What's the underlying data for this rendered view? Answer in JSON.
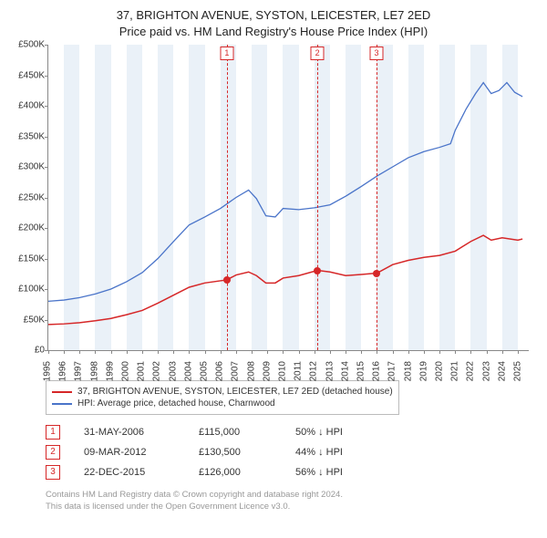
{
  "title_line1": "37, BRIGHTON AVENUE, SYSTON, LEICESTER, LE7 2ED",
  "title_line2": "Price paid vs. HM Land Registry's House Price Index (HPI)",
  "chart": {
    "type": "line",
    "background_color": "#ffffff",
    "band_color": "#eaf1f8",
    "axis_color": "#888888",
    "ylim": [
      0,
      500000
    ],
    "ytick_step": 50000,
    "yticks": [
      "£0",
      "£50K",
      "£100K",
      "£150K",
      "£200K",
      "£250K",
      "£300K",
      "£350K",
      "£400K",
      "£450K",
      "£500K"
    ],
    "xlim": [
      1995,
      2025.7
    ],
    "xticks": [
      1995,
      1996,
      1997,
      1998,
      1999,
      2000,
      2001,
      2002,
      2003,
      2004,
      2005,
      2006,
      2007,
      2008,
      2009,
      2010,
      2011,
      2012,
      2013,
      2014,
      2015,
      2016,
      2017,
      2018,
      2019,
      2020,
      2021,
      2022,
      2023,
      2024,
      2025
    ],
    "series": [
      {
        "name": "hpi",
        "label": "HPI: Average price, detached house, Charnwood",
        "color": "#4a74c9",
        "width": 1.3,
        "points": [
          [
            1995,
            80000
          ],
          [
            1996,
            82000
          ],
          [
            1997,
            86000
          ],
          [
            1998,
            92000
          ],
          [
            1999,
            100000
          ],
          [
            2000,
            112000
          ],
          [
            2001,
            127000
          ],
          [
            2002,
            150000
          ],
          [
            2003,
            178000
          ],
          [
            2004,
            205000
          ],
          [
            2005,
            218000
          ],
          [
            2006,
            232000
          ],
          [
            2007,
            250000
          ],
          [
            2007.8,
            262000
          ],
          [
            2008.3,
            248000
          ],
          [
            2008.9,
            220000
          ],
          [
            2009.5,
            218000
          ],
          [
            2010,
            232000
          ],
          [
            2011,
            230000
          ],
          [
            2012,
            233000
          ],
          [
            2013,
            238000
          ],
          [
            2014,
            252000
          ],
          [
            2015,
            268000
          ],
          [
            2016,
            285000
          ],
          [
            2017,
            300000
          ],
          [
            2018,
            315000
          ],
          [
            2019,
            325000
          ],
          [
            2020,
            332000
          ],
          [
            2020.7,
            338000
          ],
          [
            2021,
            360000
          ],
          [
            2021.7,
            395000
          ],
          [
            2022.3,
            420000
          ],
          [
            2022.8,
            438000
          ],
          [
            2023.3,
            420000
          ],
          [
            2023.8,
            425000
          ],
          [
            2024.3,
            438000
          ],
          [
            2024.8,
            422000
          ],
          [
            2025.3,
            415000
          ]
        ]
      },
      {
        "name": "property",
        "label": "37, BRIGHTON AVENUE, SYSTON, LEICESTER, LE7 2ED (detached house)",
        "color": "#d62728",
        "width": 1.5,
        "points": [
          [
            1995,
            42000
          ],
          [
            1996,
            43000
          ],
          [
            1997,
            45000
          ],
          [
            1998,
            48000
          ],
          [
            1999,
            52000
          ],
          [
            2000,
            58000
          ],
          [
            2001,
            65000
          ],
          [
            2002,
            77000
          ],
          [
            2003,
            90000
          ],
          [
            2004,
            103000
          ],
          [
            2005,
            110000
          ],
          [
            2006.4,
            115000
          ],
          [
            2007,
            123000
          ],
          [
            2007.8,
            128000
          ],
          [
            2008.3,
            122000
          ],
          [
            2008.9,
            110000
          ],
          [
            2009.5,
            110000
          ],
          [
            2010,
            118000
          ],
          [
            2011,
            122000
          ],
          [
            2012.2,
            130500
          ],
          [
            2013,
            128000
          ],
          [
            2014,
            122000
          ],
          [
            2015,
            124000
          ],
          [
            2016.0,
            126000
          ],
          [
            2017,
            140000
          ],
          [
            2018,
            147000
          ],
          [
            2019,
            152000
          ],
          [
            2020,
            155000
          ],
          [
            2021,
            162000
          ],
          [
            2022,
            178000
          ],
          [
            2022.8,
            188000
          ],
          [
            2023.3,
            180000
          ],
          [
            2024,
            184000
          ],
          [
            2025,
            180000
          ],
          [
            2025.3,
            182000
          ]
        ]
      }
    ],
    "sale_markers": [
      {
        "n": "1",
        "x": 2006.41,
        "y": 115000
      },
      {
        "n": "2",
        "x": 2012.19,
        "y": 130500
      },
      {
        "n": "3",
        "x": 2015.97,
        "y": 126000
      }
    ]
  },
  "sales": [
    {
      "n": "1",
      "date": "31-MAY-2006",
      "price": "£115,000",
      "delta": "50% ↓ HPI"
    },
    {
      "n": "2",
      "date": "09-MAR-2012",
      "price": "£130,500",
      "delta": "44% ↓ HPI"
    },
    {
      "n": "3",
      "date": "22-DEC-2015",
      "price": "£126,000",
      "delta": "56% ↓ HPI"
    }
  ],
  "footer_line1": "Contains HM Land Registry data © Crown copyright and database right 2024.",
  "footer_line2": "This data is licensed under the Open Government Licence v3.0."
}
